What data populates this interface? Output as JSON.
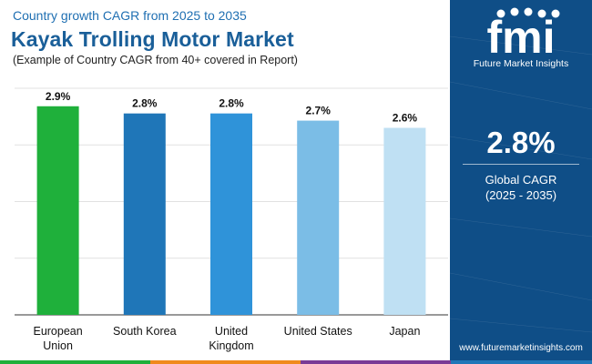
{
  "header": {
    "top_line": "Country growth CAGR from 2025 to 2035",
    "title": "Kayak Trolling Motor Market",
    "subtitle": "(Example of Country CAGR from 40+ covered in Report)"
  },
  "chart_data": {
    "type": "bar",
    "categories": [
      "European Union",
      "South Korea",
      "United Kingdom",
      "United States",
      "Japan"
    ],
    "category_lines": [
      [
        "European",
        "Union"
      ],
      [
        "South Korea"
      ],
      [
        "United",
        "Kingdom"
      ],
      [
        "United States"
      ],
      [
        "Japan"
      ]
    ],
    "values": [
      2.9,
      2.8,
      2.8,
      2.7,
      2.6
    ],
    "value_labels": [
      "2.9%",
      "2.8%",
      "2.8%",
      "2.7%",
      "2.6%"
    ],
    "colors": [
      "#1fb03b",
      "#1f76b8",
      "#2f93d9",
      "#7bbde6",
      "#bfe0f3"
    ],
    "ylim": [
      0,
      3.15
    ],
    "grid": true,
    "legend": "none",
    "title": "",
    "xlabel": "",
    "ylabel": ""
  },
  "side_panel": {
    "logo_text": "fmi",
    "logo_caption": "Future Market Insights",
    "global_value": "2.8%",
    "global_label": "Global CAGR",
    "global_period": "(2025 - 2035)",
    "url": "www.futuremarketinsights.com"
  },
  "bottom_bar_colors": [
    "#1fb03b",
    "#f08a1c",
    "#7a3a96",
    "#1f76b8"
  ]
}
